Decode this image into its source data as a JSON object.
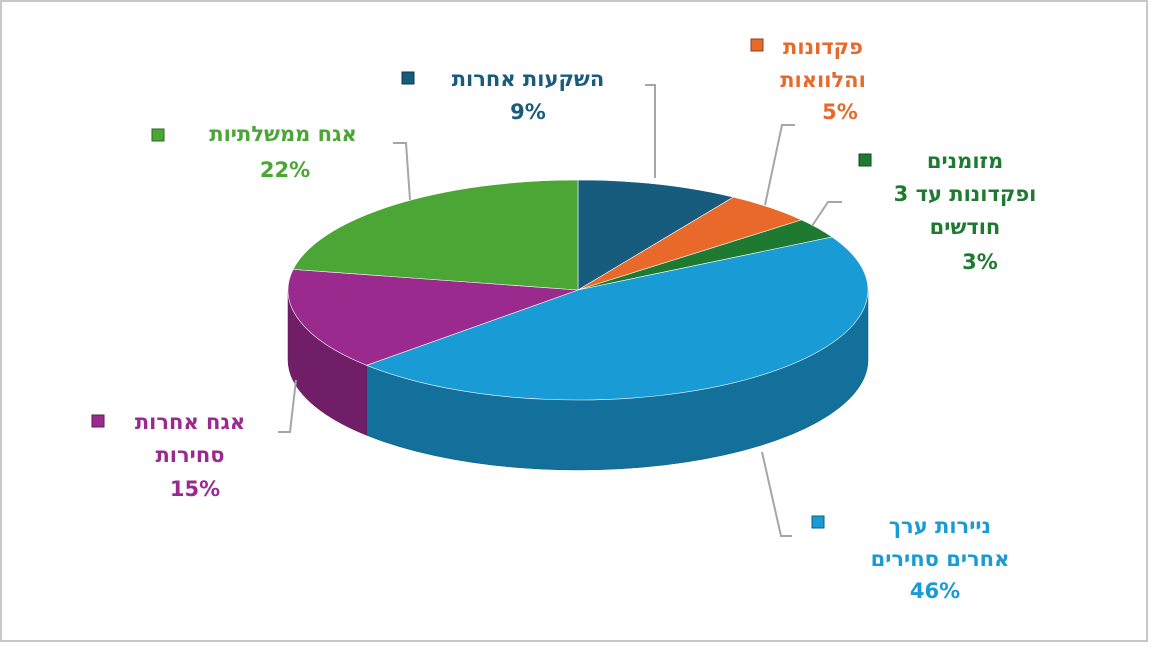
{
  "chart_data": {
    "type": "pie3d",
    "categories": [
      "השקעות אחרות",
      "פקדונות\nוהלוואות",
      "מזומנים\nופקדונות  עד 3\nחודשים",
      "ניירות  ערך\nאחרים סחירים",
      "אגח אחרות\nסחירות",
      "אגח ממשלתיות"
    ],
    "values": [
      9,
      5,
      3,
      46,
      15,
      22
    ],
    "value_labels": [
      "9%",
      "5%",
      "3%",
      "46%",
      "15%",
      "22%"
    ],
    "colors": [
      "#175b7d",
      "#e8692a",
      "#1d7a30",
      "#199bd6",
      "#9b2a8f",
      "#4ba635"
    ]
  }
}
